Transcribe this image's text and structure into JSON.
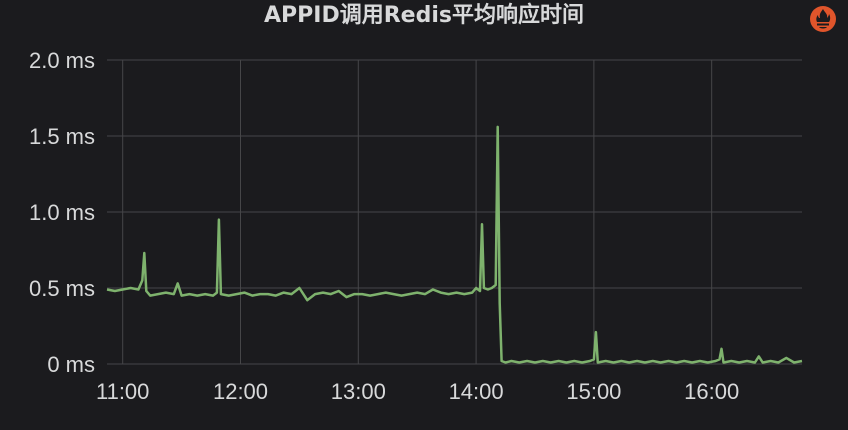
{
  "panel": {
    "title": "APPID调用Redis平均响应时间",
    "icon": "prometheus-icon",
    "accent_color": "#e0552b"
  },
  "chart_data": {
    "type": "line",
    "title": "APPID调用Redis平均响应时间",
    "xlabel": "",
    "ylabel": "",
    "x_unit": "time (HH:MM)",
    "xlim": [
      "10:52",
      "16:46"
    ],
    "ylim": [
      0,
      2.0
    ],
    "x_ticks": [
      "11:00",
      "12:00",
      "13:00",
      "14:00",
      "15:00",
      "16:00"
    ],
    "y_ticks": [
      "0 ms",
      "0.5 ms",
      "1.0 ms",
      "1.5 ms",
      "2.0 ms"
    ],
    "y_tick_values": [
      0,
      0.5,
      1.0,
      1.5,
      2.0
    ],
    "grid": true,
    "legend": "none",
    "series": [
      {
        "color": "#7eb26d",
        "x": [
          "10:52",
          "10:56",
          "11:00",
          "11:04",
          "11:08",
          "11:10",
          "11:11",
          "11:12",
          "11:14",
          "11:18",
          "11:22",
          "11:26",
          "11:28",
          "11:30",
          "11:34",
          "11:38",
          "11:42",
          "11:46",
          "11:48",
          "11:49",
          "11:50",
          "11:54",
          "11:58",
          "12:02",
          "12:06",
          "12:10",
          "12:14",
          "12:18",
          "12:22",
          "12:26",
          "12:30",
          "12:34",
          "12:38",
          "12:42",
          "12:46",
          "12:50",
          "12:54",
          "12:58",
          "13:02",
          "13:06",
          "13:10",
          "13:14",
          "13:18",
          "13:22",
          "13:26",
          "13:30",
          "13:34",
          "13:38",
          "13:42",
          "13:46",
          "13:50",
          "13:54",
          "13:58",
          "14:00",
          "14:02",
          "14:03",
          "14:04",
          "14:06",
          "14:08",
          "14:10",
          "14:11",
          "14:12",
          "14:13",
          "14:15",
          "14:18",
          "14:22",
          "14:26",
          "14:30",
          "14:34",
          "14:38",
          "14:42",
          "14:46",
          "14:50",
          "14:54",
          "14:58",
          "15:00",
          "15:01",
          "15:02",
          "15:06",
          "15:10",
          "15:14",
          "15:18",
          "15:22",
          "15:26",
          "15:30",
          "15:34",
          "15:38",
          "15:42",
          "15:46",
          "15:50",
          "15:54",
          "15:58",
          "16:02",
          "16:04",
          "16:05",
          "16:06",
          "16:10",
          "16:14",
          "16:18",
          "16:22",
          "16:24",
          "16:26",
          "16:30",
          "16:34",
          "16:38",
          "16:42",
          "16:46"
        ],
        "y": [
          0.49,
          0.48,
          0.49,
          0.5,
          0.49,
          0.55,
          0.73,
          0.48,
          0.45,
          0.46,
          0.47,
          0.46,
          0.53,
          0.45,
          0.46,
          0.45,
          0.46,
          0.45,
          0.47,
          0.95,
          0.46,
          0.45,
          0.46,
          0.47,
          0.45,
          0.46,
          0.46,
          0.45,
          0.47,
          0.46,
          0.5,
          0.42,
          0.46,
          0.47,
          0.46,
          0.48,
          0.44,
          0.46,
          0.46,
          0.45,
          0.46,
          0.47,
          0.46,
          0.45,
          0.46,
          0.47,
          0.46,
          0.49,
          0.47,
          0.46,
          0.47,
          0.46,
          0.47,
          0.5,
          0.48,
          0.92,
          0.5,
          0.49,
          0.5,
          0.52,
          1.56,
          0.4,
          0.02,
          0.01,
          0.02,
          0.01,
          0.02,
          0.01,
          0.02,
          0.01,
          0.02,
          0.01,
          0.02,
          0.01,
          0.02,
          0.03,
          0.21,
          0.01,
          0.02,
          0.01,
          0.02,
          0.01,
          0.02,
          0.01,
          0.02,
          0.01,
          0.02,
          0.01,
          0.02,
          0.01,
          0.02,
          0.01,
          0.02,
          0.03,
          0.1,
          0.01,
          0.02,
          0.01,
          0.02,
          0.01,
          0.05,
          0.01,
          0.02,
          0.01,
          0.04,
          0.01,
          0.02
        ]
      }
    ]
  }
}
